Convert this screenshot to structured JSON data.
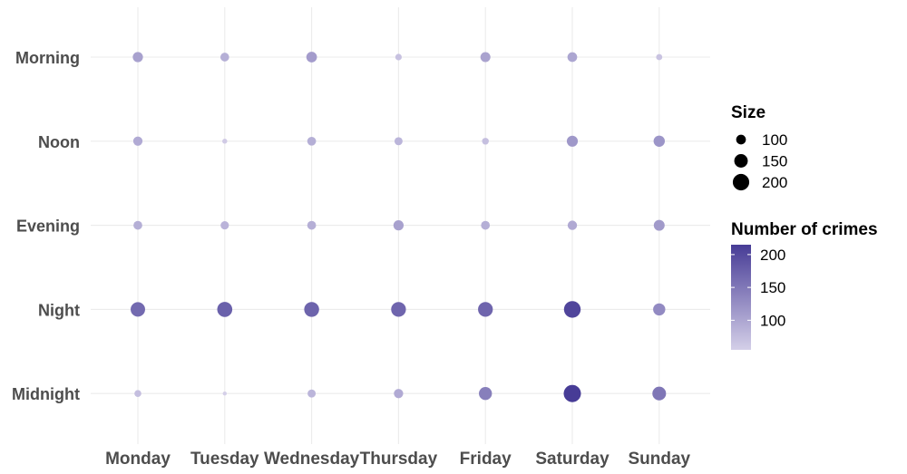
{
  "chart_data": {
    "type": "scatter",
    "title": "",
    "xlabel": "",
    "ylabel": "",
    "x_categories": [
      "Monday",
      "Tuesday",
      "Wednesday",
      "Thursday",
      "Friday",
      "Saturday",
      "Sunday"
    ],
    "y_categories": [
      "Morning",
      "Noon",
      "Evening",
      "Night",
      "Midnight"
    ],
    "points": [
      {
        "day": "Monday",
        "time": "Morning",
        "crimes": 105
      },
      {
        "day": "Tuesday",
        "time": "Morning",
        "crimes": 90
      },
      {
        "day": "Wednesday",
        "time": "Morning",
        "crimes": 110
      },
      {
        "day": "Thursday",
        "time": "Morning",
        "crimes": 70
      },
      {
        "day": "Friday",
        "time": "Morning",
        "crimes": 103
      },
      {
        "day": "Saturday",
        "time": "Morning",
        "crimes": 100
      },
      {
        "day": "Sunday",
        "time": "Morning",
        "crimes": 68
      },
      {
        "day": "Monday",
        "time": "Noon",
        "crimes": 95
      },
      {
        "day": "Tuesday",
        "time": "Noon",
        "crimes": 60
      },
      {
        "day": "Wednesday",
        "time": "Noon",
        "crimes": 90
      },
      {
        "day": "Thursday",
        "time": "Noon",
        "crimes": 83
      },
      {
        "day": "Friday",
        "time": "Noon",
        "crimes": 72
      },
      {
        "day": "Saturday",
        "time": "Noon",
        "crimes": 115
      },
      {
        "day": "Sunday",
        "time": "Noon",
        "crimes": 118
      },
      {
        "day": "Monday",
        "time": "Evening",
        "crimes": 90
      },
      {
        "day": "Tuesday",
        "time": "Evening",
        "crimes": 85
      },
      {
        "day": "Wednesday",
        "time": "Evening",
        "crimes": 90
      },
      {
        "day": "Thursday",
        "time": "Evening",
        "crimes": 105
      },
      {
        "day": "Friday",
        "time": "Evening",
        "crimes": 90
      },
      {
        "day": "Saturday",
        "time": "Evening",
        "crimes": 96
      },
      {
        "day": "Sunday",
        "time": "Evening",
        "crimes": 113
      },
      {
        "day": "Monday",
        "time": "Night",
        "crimes": 165
      },
      {
        "day": "Tuesday",
        "time": "Night",
        "crimes": 175
      },
      {
        "day": "Wednesday",
        "time": "Night",
        "crimes": 172
      },
      {
        "day": "Thursday",
        "time": "Night",
        "crimes": 170
      },
      {
        "day": "Friday",
        "time": "Night",
        "crimes": 170
      },
      {
        "day": "Saturday",
        "time": "Night",
        "crimes": 205
      },
      {
        "day": "Sunday",
        "time": "Night",
        "crimes": 130
      },
      {
        "day": "Monday",
        "time": "Midnight",
        "crimes": 73
      },
      {
        "day": "Tuesday",
        "time": "Midnight",
        "crimes": 55
      },
      {
        "day": "Wednesday",
        "time": "Midnight",
        "crimes": 83
      },
      {
        "day": "Thursday",
        "time": "Midnight",
        "crimes": 95
      },
      {
        "day": "Friday",
        "time": "Midnight",
        "crimes": 142
      },
      {
        "day": "Saturday",
        "time": "Midnight",
        "crimes": 215
      },
      {
        "day": "Sunday",
        "time": "Midnight",
        "crimes": 152
      }
    ],
    "size_legend": {
      "title": "Size",
      "entries": [
        {
          "label": "100",
          "value": 100
        },
        {
          "label": "150",
          "value": 150
        },
        {
          "label": "200",
          "value": 200
        }
      ]
    },
    "color_legend": {
      "title": "Number of crimes",
      "range": [
        55,
        215
      ],
      "low_color": "#d4cfe8",
      "high_color": "#473c96",
      "breaks": [
        {
          "label": "100",
          "value": 100
        },
        {
          "label": "150",
          "value": 150
        },
        {
          "label": "200",
          "value": 200
        }
      ]
    },
    "grid": true,
    "legend_position": "right"
  }
}
